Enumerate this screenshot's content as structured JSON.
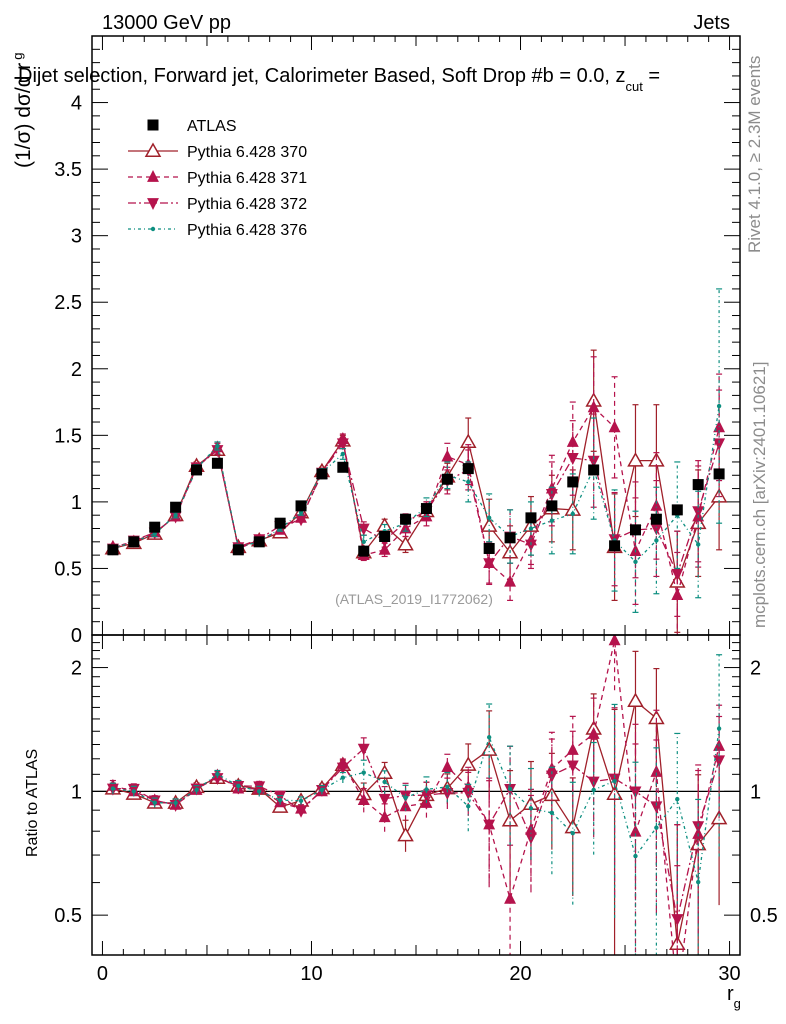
{
  "header": {
    "left": "13000 GeV pp",
    "right": "Jets",
    "title": "Dijet selection, Forward jet, Calorimeter Based, Soft Drop #b = 0.0, z",
    "title_sub": "cut",
    "title_tail": " ="
  },
  "side_labels": {
    "rivet": "Rivet 4.1.0, ≥ 2.3M events",
    "mcplots": "mcplots.cern.ch [arXiv:2401.10621]"
  },
  "watermark": "(ATLAS_2019_I1772062)",
  "chart_data": {
    "type": "scatter",
    "main": {
      "ylabel": "(1/σ) dσ/d r",
      "ylabel_sub": "g",
      "ylim": [
        0,
        4.5
      ],
      "yticks": [
        "0",
        "0.5",
        "1",
        "1.5",
        "2",
        "2.5",
        "3",
        "3.5",
        "4"
      ]
    },
    "ratio": {
      "ylabel": "Ratio to ATLAS",
      "yticks": [
        "0.5",
        "1",
        "2"
      ],
      "ylim": [
        0.4,
        2.4
      ]
    },
    "xlabel": "r",
    "xlabel_sub": "g",
    "xlim": [
      -0.5,
      30.5
    ],
    "xticks": [
      "0",
      "10",
      "20",
      "30"
    ],
    "x": [
      0.5,
      1.5,
      2.5,
      3.5,
      4.5,
      5.5,
      6.5,
      7.5,
      8.5,
      9.5,
      10.5,
      11.5,
      12.5,
      13.5,
      14.5,
      15.5,
      16.5,
      17.5,
      18.5,
      19.5,
      20.5,
      21.5,
      22.5,
      23.5,
      24.5,
      25.5,
      26.5,
      27.5,
      28.5,
      29.5
    ],
    "series": [
      {
        "name": "ATLAS",
        "color": "#000000",
        "values": [
          0.64,
          0.7,
          0.81,
          0.96,
          1.24,
          1.29,
          0.64,
          0.7,
          0.84,
          0.97,
          1.21,
          1.26,
          0.63,
          0.74,
          0.87,
          0.95,
          1.17,
          1.25,
          0.65,
          0.73,
          0.88,
          0.97,
          1.15,
          1.24,
          0.67,
          0.79,
          0.87,
          0.94,
          1.13,
          1.21
        ]
      },
      {
        "name": "Pythia 6.428 370",
        "color": "#a0202a",
        "values": [
          0.65,
          0.69,
          0.76,
          0.9,
          1.27,
          1.39,
          0.66,
          0.71,
          0.77,
          0.92,
          1.23,
          1.46,
          0.62,
          0.82,
          0.68,
          0.93,
          1.19,
          1.45,
          0.82,
          0.62,
          0.82,
          0.95,
          0.94,
          1.76,
          0.66,
          1.31,
          1.31,
          0.4,
          0.84,
          1.04
        ],
        "errors": [
          0.02,
          0.02,
          0.02,
          0.02,
          0.03,
          0.03,
          0.02,
          0.02,
          0.02,
          0.02,
          0.03,
          0.04,
          0.04,
          0.05,
          0.06,
          0.07,
          0.1,
          0.18,
          0.2,
          0.2,
          0.22,
          0.25,
          0.3,
          0.38,
          0.4,
          0.42,
          0.42,
          0.38,
          0.4,
          0.4
        ]
      },
      {
        "name": "Pythia 6.428 371",
        "color": "#b5134c",
        "values": [
          0.66,
          0.7,
          0.77,
          0.89,
          1.25,
          1.41,
          0.65,
          0.71,
          0.79,
          0.88,
          1.21,
          1.47,
          0.6,
          0.64,
          0.8,
          0.89,
          1.34,
          1.28,
          0.54,
          0.4,
          0.71,
          1.1,
          1.45,
          1.71,
          1.56,
          0.63,
          0.97,
          0.3,
          0.89,
          1.56
        ],
        "errors": [
          0.02,
          0.02,
          0.02,
          0.02,
          0.03,
          0.03,
          0.02,
          0.02,
          0.02,
          0.02,
          0.03,
          0.04,
          0.04,
          0.05,
          0.06,
          0.07,
          0.1,
          0.15,
          0.16,
          0.14,
          0.18,
          0.25,
          0.3,
          0.38,
          0.38,
          0.4,
          0.4,
          0.32,
          0.38,
          0.4
        ]
      },
      {
        "name": "Pythia 6.428 372",
        "color": "#b5134c",
        "values": [
          0.65,
          0.71,
          0.77,
          0.89,
          1.26,
          1.39,
          0.66,
          0.72,
          0.82,
          0.87,
          1.22,
          1.44,
          0.8,
          0.71,
          0.85,
          0.93,
          1.16,
          1.24,
          0.54,
          0.74,
          0.68,
          1.06,
          1.33,
          1.31,
          0.72,
          0.79,
          0.8,
          0.46,
          0.93,
          1.44
        ],
        "errors": [
          0.02,
          0.02,
          0.02,
          0.02,
          0.03,
          0.03,
          0.02,
          0.02,
          0.02,
          0.02,
          0.03,
          0.04,
          0.05,
          0.05,
          0.06,
          0.07,
          0.1,
          0.15,
          0.15,
          0.2,
          0.18,
          0.24,
          0.28,
          0.35,
          0.35,
          0.36,
          0.36,
          0.32,
          0.38,
          0.4
        ]
      },
      {
        "name": "Pythia 6.428 376",
        "color": "#0d8f80",
        "values": [
          0.65,
          0.7,
          0.76,
          0.9,
          1.25,
          1.42,
          0.66,
          0.7,
          0.8,
          0.92,
          1.22,
          1.36,
          0.7,
          0.78,
          0.84,
          0.96,
          1.2,
          1.15,
          0.88,
          0.74,
          0.8,
          0.86,
          0.91,
          1.25,
          0.71,
          0.55,
          0.71,
          0.9,
          0.68,
          1.72
        ],
        "errors": [
          0.02,
          0.02,
          0.02,
          0.02,
          0.03,
          0.03,
          0.02,
          0.02,
          0.02,
          0.02,
          0.03,
          0.04,
          0.05,
          0.05,
          0.06,
          0.07,
          0.1,
          0.15,
          0.18,
          0.2,
          0.2,
          0.25,
          0.3,
          0.38,
          0.38,
          0.38,
          0.4,
          0.4,
          0.4,
          0.88
        ]
      }
    ]
  }
}
